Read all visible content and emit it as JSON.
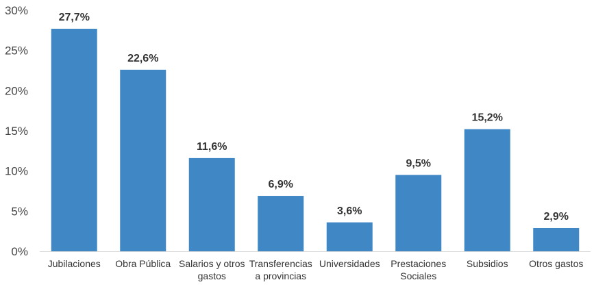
{
  "chart_data": {
    "type": "bar",
    "categories": [
      [
        "Jubilaciones"
      ],
      [
        "Obra Pública"
      ],
      [
        "Salarios y otros",
        "gastos"
      ],
      [
        "Transferencias",
        "a provincias"
      ],
      [
        "Universidades"
      ],
      [
        "Prestaciones",
        "Sociales"
      ],
      [
        "Subsidios"
      ],
      [
        "Otros gastos"
      ]
    ],
    "values": [
      27.7,
      22.6,
      11.6,
      6.9,
      3.6,
      9.5,
      15.2,
      2.9
    ],
    "data_labels": [
      "27,7%",
      "22,6%",
      "11,6%",
      "6,9%",
      "3,6%",
      "9,5%",
      "15,2%",
      "2,9%"
    ],
    "ylim": [
      0,
      30
    ],
    "yticks": [
      0,
      5,
      10,
      15,
      20,
      25,
      30
    ],
    "ytick_labels": [
      "0%",
      "5%",
      "10%",
      "15%",
      "20%",
      "25%",
      "30%"
    ],
    "grid": false,
    "bar_color": "#3f88c5",
    "axis_color": "#d9d9d9"
  }
}
